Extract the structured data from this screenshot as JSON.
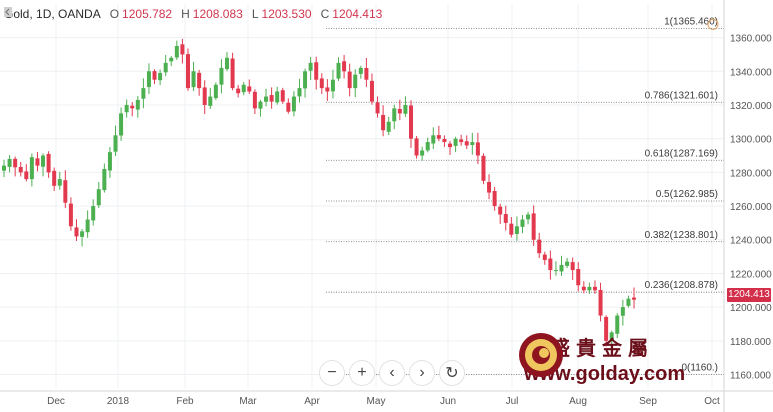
{
  "header": {
    "symbol": "Gold, 1D, OANDA",
    "open_label": "O",
    "open_value": "1205.782",
    "high_label": "H",
    "high_value": "1208.083",
    "low_label": "L",
    "low_value": "1203.530",
    "close_label": "C",
    "close_value": "1204.413",
    "collapse_icon": "chevron-left-icon"
  },
  "colors": {
    "up": "#4caf50",
    "down": "#e2394f",
    "grid": "#eef0f3",
    "axis_text": "#555555",
    "fib_line": "#6b6b6b",
    "price_tag": "#d32f4b",
    "watermark": "#6b0f1a"
  },
  "toolbar": {
    "zoom_out": "−",
    "zoom_in": "+",
    "back": "‹",
    "forward": "›",
    "reset": "↻",
    "icons": [
      "minus-icon",
      "plus-icon",
      "chevron-left-icon",
      "chevron-right-icon",
      "reset-icon"
    ]
  },
  "current_price_tag": "1204.413",
  "watermark": {
    "chinese": "金盛貴金屬",
    "url": "www.golday.com",
    "logo_icon": "golday-logo-icon"
  },
  "chart_data": {
    "type": "candlestick",
    "y_ticks": [
      "1360.000",
      "1340.000",
      "1320.000",
      "1300.000",
      "1280.000",
      "1260.000",
      "1240.000",
      "1220.000",
      "1200.000",
      "1180.000",
      "1160.000"
    ],
    "ylim": [
      1152,
      1374
    ],
    "x_ticks": [
      "Dec",
      "2018",
      "Feb",
      "Mar",
      "Apr",
      "May",
      "Jun",
      "Jul",
      "Aug",
      "Sep",
      "Oct"
    ],
    "fib_levels": [
      {
        "label": "1(1365.460)",
        "value": 1365.46
      },
      {
        "label": "0.786(1321.601)",
        "value": 1321.601
      },
      {
        "label": "0.618(1287.169)",
        "value": 1287.169
      },
      {
        "label": "0.5(1262.985)",
        "value": 1262.985
      },
      {
        "label": "0.382(1238.801)",
        "value": 1238.801
      },
      {
        "label": "0.236(1208.878)",
        "value": 1208.878
      },
      {
        "label": "0(1160.)",
        "value": 1160.0
      }
    ],
    "trend_close": [
      1284,
      1288,
      1283,
      1280,
      1276,
      1289,
      1284,
      1290,
      1280,
      1272,
      1276,
      1262,
      1248,
      1242,
      1245,
      1252,
      1260,
      1270,
      1282,
      1292,
      1302,
      1315,
      1320,
      1318,
      1323,
      1330,
      1340,
      1335,
      1339,
      1345,
      1348,
      1355,
      1350,
      1330,
      1340,
      1330,
      1320,
      1325,
      1332,
      1342,
      1348,
      1330,
      1327,
      1332,
      1328,
      1318,
      1322,
      1325,
      1322,
      1328,
      1322,
      1316,
      1325,
      1330,
      1340,
      1345,
      1335,
      1330,
      1328,
      1335,
      1345,
      1340,
      1330,
      1338,
      1342,
      1335,
      1322,
      1315,
      1305,
      1310,
      1318,
      1315,
      1320,
      1300,
      1290,
      1293,
      1298,
      1302,
      1300,
      1298,
      1295,
      1300,
      1298,
      1296,
      1298,
      1290,
      1275,
      1268,
      1260,
      1255,
      1250,
      1243,
      1248,
      1252,
      1255,
      1240,
      1232,
      1228,
      1222,
      1222,
      1225,
      1227,
      1222,
      1213,
      1210,
      1212,
      1210,
      1195,
      1180,
      1185,
      1195,
      1200,
      1205,
      1204.413
    ]
  }
}
